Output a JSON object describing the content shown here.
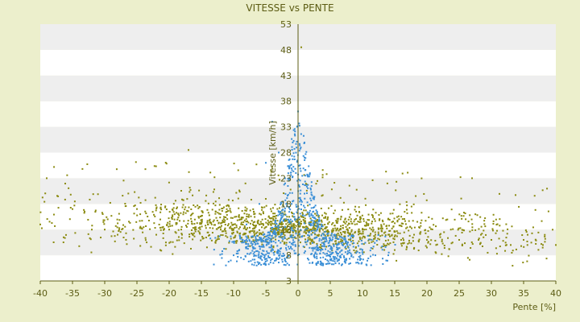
{
  "chart_data": {
    "type": "scatter",
    "title": "VITESSE vs PENTE",
    "xlabel": "Pente [%]",
    "ylabel": "Vitesse [km/h]",
    "xlim": [
      -40,
      40
    ],
    "ylim": [
      3,
      53
    ],
    "x_ticks": [
      "-40",
      "-35",
      "-30",
      "-25",
      "-20",
      "-15",
      "-10",
      "-5",
      "0",
      "5",
      "10",
      "15",
      "20",
      "25",
      "30",
      "35",
      "40"
    ],
    "y_ticks": [
      "3",
      "8",
      "13",
      "18",
      "23",
      "28",
      "33",
      "38",
      "43",
      "48",
      "53"
    ],
    "grid": "alternating horizontal bands",
    "legend": "none",
    "colors": {
      "background": "#ecefcc",
      "band_light": "#ffffff",
      "band_dark": "#eeeeee",
      "series_olive": "#8b8b10",
      "series_blue": "#3b8fd6",
      "axis": "#5c5c14"
    },
    "series": [
      {
        "color_key": "series_olive",
        "distribution": "dense horizontal band across full slope range",
        "x": [
          -40,
          -39,
          -35,
          -32,
          -30,
          -28,
          -25,
          -22,
          -20,
          -18,
          -16,
          -14,
          -12,
          -10,
          -8,
          -6,
          -4,
          -2,
          0,
          2,
          4,
          6,
          8,
          10,
          12,
          14,
          16,
          18,
          20,
          22,
          25,
          28,
          30,
          33,
          35,
          38,
          40
        ],
        "y": [
          14,
          23,
          17,
          13,
          13,
          12,
          17,
          12,
          13,
          12,
          13,
          14,
          13,
          14,
          13,
          14,
          13,
          13,
          14,
          13,
          12,
          12,
          12,
          13,
          12,
          12,
          11,
          12,
          11,
          12,
          11,
          11,
          11,
          10,
          11,
          10,
          10
        ]
      },
      {
        "color_key": "series_blue",
        "distribution": "peak near 0% slope",
        "x": [
          -10,
          -8,
          -6,
          -5,
          -4,
          -3,
          -2,
          -1,
          0,
          0,
          1,
          2,
          3,
          4,
          5,
          6,
          8,
          10,
          12,
          14
        ],
        "y": [
          8,
          14,
          18,
          26,
          34,
          28,
          22,
          18,
          36,
          8,
          20,
          14,
          13,
          12,
          11,
          10,
          9,
          9,
          8,
          8
        ]
      }
    ],
    "outlier_points": [
      [
        0.5,
        48.5
      ],
      [
        -17,
        28.5
      ],
      [
        27,
        23
      ]
    ]
  }
}
